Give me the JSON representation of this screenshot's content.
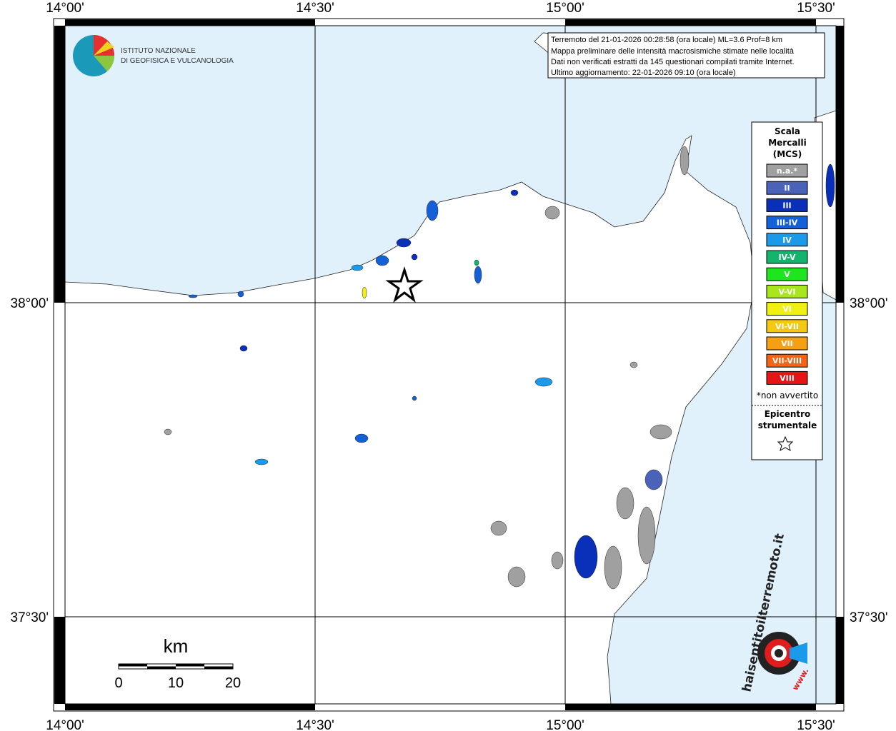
{
  "map": {
    "lon_labels": [
      "14°00'",
      "14°30'",
      "15°00'",
      "15°30'"
    ],
    "lat_labels": [
      "38°00'",
      "37°30'"
    ],
    "institute": [
      "ISTITUTO NAZIONALE",
      "DI GEOFISICA E VULCANOLOGIA"
    ],
    "info": [
      "Terremoto del 21-01-2026 00:28:58 (ora locale) ML=3.6 Prof=8 km",
      "Mappa preliminare delle intensità macrosismiche stimate nelle località",
      "Dati non verificati estratti da 145 questionari compilati tramite Internet.",
      "Ultimo aggiornamento: 22-01-2026 09:10 (ora locale)"
    ],
    "legend": {
      "title": [
        "Scala",
        "Mercalli",
        "(MCS)"
      ],
      "items": [
        {
          "label": "n.a.*",
          "color": "#a0a0a0"
        },
        {
          "label": "II",
          "color": "#4a62b8"
        },
        {
          "label": "III",
          "color": "#0a2fb8"
        },
        {
          "label": "III-IV",
          "color": "#1460d8"
        },
        {
          "label": "IV",
          "color": "#1a9ae8"
        },
        {
          "label": "IV-V",
          "color": "#14b46e"
        },
        {
          "label": "V",
          "color": "#1ee61e"
        },
        {
          "label": "V-VI",
          "color": "#a8e61e"
        },
        {
          "label": "VI",
          "color": "#f0f014"
        },
        {
          "label": "VI-VII",
          "color": "#f5c814"
        },
        {
          "label": "VII",
          "color": "#f5a014"
        },
        {
          "label": "VII-VIII",
          "color": "#f56414"
        },
        {
          "label": "VIII",
          "color": "#e61414"
        }
      ],
      "note": "*non avvertito",
      "epicenter": [
        "Epicentro",
        "strumentale"
      ]
    },
    "scale": {
      "unit": "km",
      "ticks": [
        "0",
        "10",
        "20"
      ]
    },
    "site": {
      "name": "haisentitoilterremoto.it",
      "www": "www."
    }
  }
}
